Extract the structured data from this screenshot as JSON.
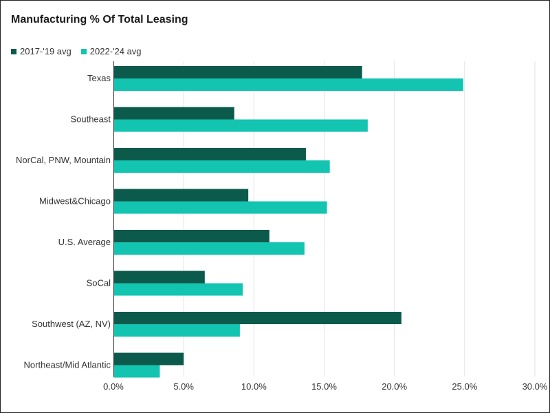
{
  "chart_data": {
    "type": "bar",
    "orientation": "horizontal",
    "title": "Manufacturing % Of Total Leasing",
    "xlabel": "",
    "ylabel": "",
    "categories": [
      "Texas",
      "Southeast",
      "NorCal, PNW, Mountain",
      "Midwest&Chicago",
      "U.S. Average",
      "SoCal",
      "Southwest (AZ, NV)",
      "Northeast/Mid Atlantic"
    ],
    "series": [
      {
        "name": "2017-'19 avg",
        "color": "#0b5a4c",
        "values": [
          17.7,
          8.6,
          13.7,
          9.6,
          11.1,
          6.5,
          20.5,
          5.0
        ]
      },
      {
        "name": "2022-'24 avg",
        "color": "#13c4b0",
        "values": [
          24.9,
          18.1,
          15.4,
          15.2,
          13.6,
          9.2,
          9.0,
          3.3
        ]
      }
    ],
    "xlim": [
      0,
      30
    ],
    "xticks": [
      "0.0%",
      "5.0%",
      "10.0%",
      "15.0%",
      "20.0%",
      "25.0%",
      "30.0%"
    ],
    "grid": true,
    "legend_position": "top-left"
  }
}
